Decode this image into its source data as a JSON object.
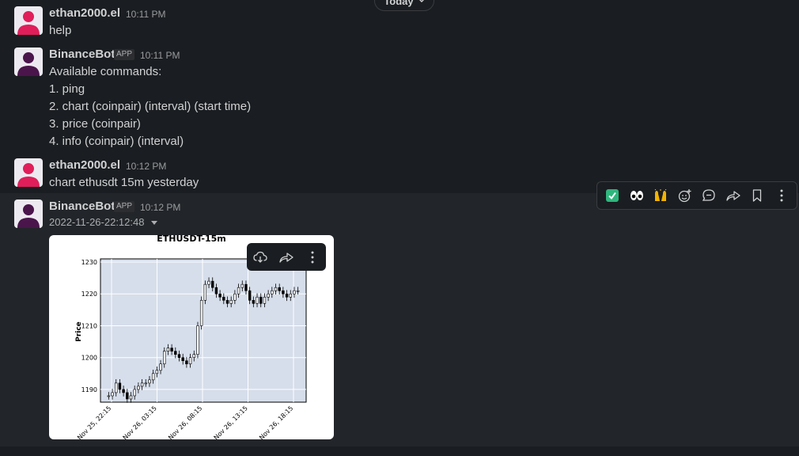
{
  "date_divider": {
    "label": "Today",
    "chevron_icon": "chevron-down-icon"
  },
  "messages": [
    {
      "user": "ethan2000.el",
      "time": "10:11 PM",
      "lines": [
        "help"
      ]
    },
    {
      "user": "BinanceBot",
      "badge": "APP",
      "time": "10:11 PM",
      "lines": [
        "Available commands:",
        "1. ping",
        "2. chart (coinpair) (interval) (start time)",
        "3. price (coinpair)",
        "4. info (coinpair) (interval)"
      ]
    },
    {
      "user": "ethan2000.el",
      "time": "10:12 PM",
      "lines": [
        "chart ethusdt 15m yesterday"
      ]
    },
    {
      "user": "BinanceBot",
      "badge": "APP",
      "time": "10:12 PM",
      "attachment_name": "2022-11-26-22:12:48"
    }
  ],
  "message_actions": [
    "white-check-mark-emoji",
    "eyes-emoji",
    "raised-hands-emoji",
    "add-reaction-icon",
    "reply-in-thread-icon",
    "share-icon",
    "bookmark-icon",
    "more-actions-icon"
  ],
  "image_toolbar": [
    "download-icon",
    "share-icon",
    "more-icon"
  ],
  "colors": {
    "background": "#1a1d21",
    "hover_row": "#222529",
    "avatar_user": "#e01e5a",
    "avatar_bot": "#4a154b",
    "chart_plot_bg": "#d6deeb"
  },
  "chart_data": {
    "type": "candlestick",
    "title": "ETHUSDT-15m",
    "ylabel": "Price",
    "xlabel": "",
    "yticks": [
      1190,
      1200,
      1210,
      1220,
      1230
    ],
    "ylim": [
      1186,
      1231
    ],
    "xticks": [
      "Nov 25, 22:15",
      "Nov 26, 03:15",
      "Nov 26, 08:15",
      "Nov 26, 13:15",
      "Nov 26, 18:15"
    ],
    "grid": true,
    "close_series": [
      1188,
      1189,
      1192,
      1190,
      1189,
      1187,
      1188,
      1190,
      1191,
      1192,
      1192,
      1193,
      1195,
      1196,
      1198,
      1202,
      1203,
      1202,
      1201,
      1200,
      1199,
      1198,
      1200,
      1201,
      1210,
      1218,
      1223,
      1224,
      1222,
      1220,
      1219,
      1218,
      1217,
      1218,
      1220,
      1222,
      1223,
      1221,
      1218,
      1217,
      1219,
      1217,
      1219,
      1220,
      1221,
      1222,
      1221,
      1220,
      1219,
      1220,
      1221,
      1221
    ]
  }
}
